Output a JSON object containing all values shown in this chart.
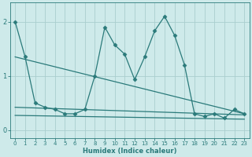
{
  "title": "",
  "xlabel": "Humidex (Indice chaleur)",
  "xlim": [
    -0.5,
    23.5
  ],
  "ylim": [
    -0.15,
    2.35
  ],
  "yticks": [
    0,
    1,
    2
  ],
  "xticks": [
    0,
    1,
    2,
    3,
    4,
    5,
    6,
    7,
    8,
    9,
    10,
    11,
    12,
    13,
    14,
    15,
    16,
    17,
    18,
    19,
    20,
    21,
    22,
    23
  ],
  "bg_color": "#ceeaea",
  "grid_color": "#aacece",
  "line_color": "#2a7a7a",
  "series": [
    {
      "x": [
        0,
        1,
        2,
        3,
        4,
        5,
        6,
        7,
        8,
        9,
        10,
        11,
        12,
        13,
        14,
        15,
        16,
        17,
        18,
        19,
        20,
        21,
        22,
        23
      ],
      "y": [
        2.0,
        1.35,
        0.5,
        0.42,
        0.38,
        0.3,
        0.3,
        0.38,
        1.0,
        1.9,
        1.57,
        1.4,
        0.93,
        1.35,
        1.83,
        2.1,
        1.75,
        1.2,
        0.3,
        0.25,
        0.3,
        0.22,
        0.38,
        0.3
      ],
      "marker": "D",
      "markersize": 2.5,
      "linewidth": 0.9
    },
    {
      "x": [
        0,
        23
      ],
      "y": [
        1.35,
        0.3
      ],
      "marker": null,
      "markersize": 0,
      "linewidth": 0.9
    },
    {
      "x": [
        0,
        23
      ],
      "y": [
        0.27,
        0.2
      ],
      "marker": null,
      "markersize": 0,
      "linewidth": 0.9
    },
    {
      "x": [
        0,
        23
      ],
      "y": [
        0.42,
        0.28
      ],
      "marker": null,
      "markersize": 0,
      "linewidth": 0.9
    }
  ]
}
